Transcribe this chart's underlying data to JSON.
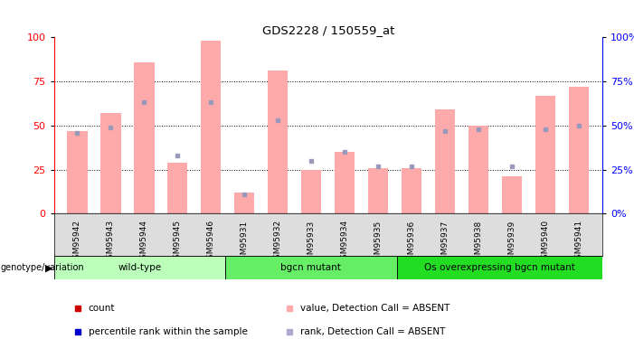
{
  "title": "GDS2228 / 150559_at",
  "samples": [
    "GSM95942",
    "GSM95943",
    "GSM95944",
    "GSM95945",
    "GSM95946",
    "GSM95931",
    "GSM95932",
    "GSM95933",
    "GSM95934",
    "GSM95935",
    "GSM95936",
    "GSM95937",
    "GSM95938",
    "GSM95939",
    "GSM95940",
    "GSM95941"
  ],
  "pink_bars": [
    47,
    57,
    86,
    29,
    98,
    12,
    81,
    25,
    35,
    26,
    26,
    59,
    50,
    21,
    67,
    72
  ],
  "blue_squares": [
    46,
    49,
    63,
    33,
    63,
    11,
    53,
    30,
    35,
    27,
    27,
    47,
    48,
    27,
    48,
    50
  ],
  "groups": [
    {
      "label": "wild-type",
      "start": 0,
      "end": 5,
      "color": "#bbffbb"
    },
    {
      "label": "bgcn mutant",
      "start": 5,
      "end": 10,
      "color": "#66ee66"
    },
    {
      "label": "Os overexpressing bgcn mutant",
      "start": 10,
      "end": 16,
      "color": "#22dd22"
    }
  ],
  "ylim": [
    0,
    100
  ],
  "y_ticks": [
    0,
    25,
    50,
    75,
    100
  ],
  "pink_color": "#ffaaaa",
  "blue_color": "#9999bb",
  "legend_items": [
    {
      "label": "count",
      "color": "#cc0000",
      "marker": "s"
    },
    {
      "label": "percentile rank within the sample",
      "color": "#0000cc",
      "marker": "s"
    },
    {
      "label": "value, Detection Call = ABSENT",
      "color": "#ffaaaa",
      "marker": "s"
    },
    {
      "label": "rank, Detection Call = ABSENT",
      "color": "#aaaacc",
      "marker": "s"
    }
  ]
}
